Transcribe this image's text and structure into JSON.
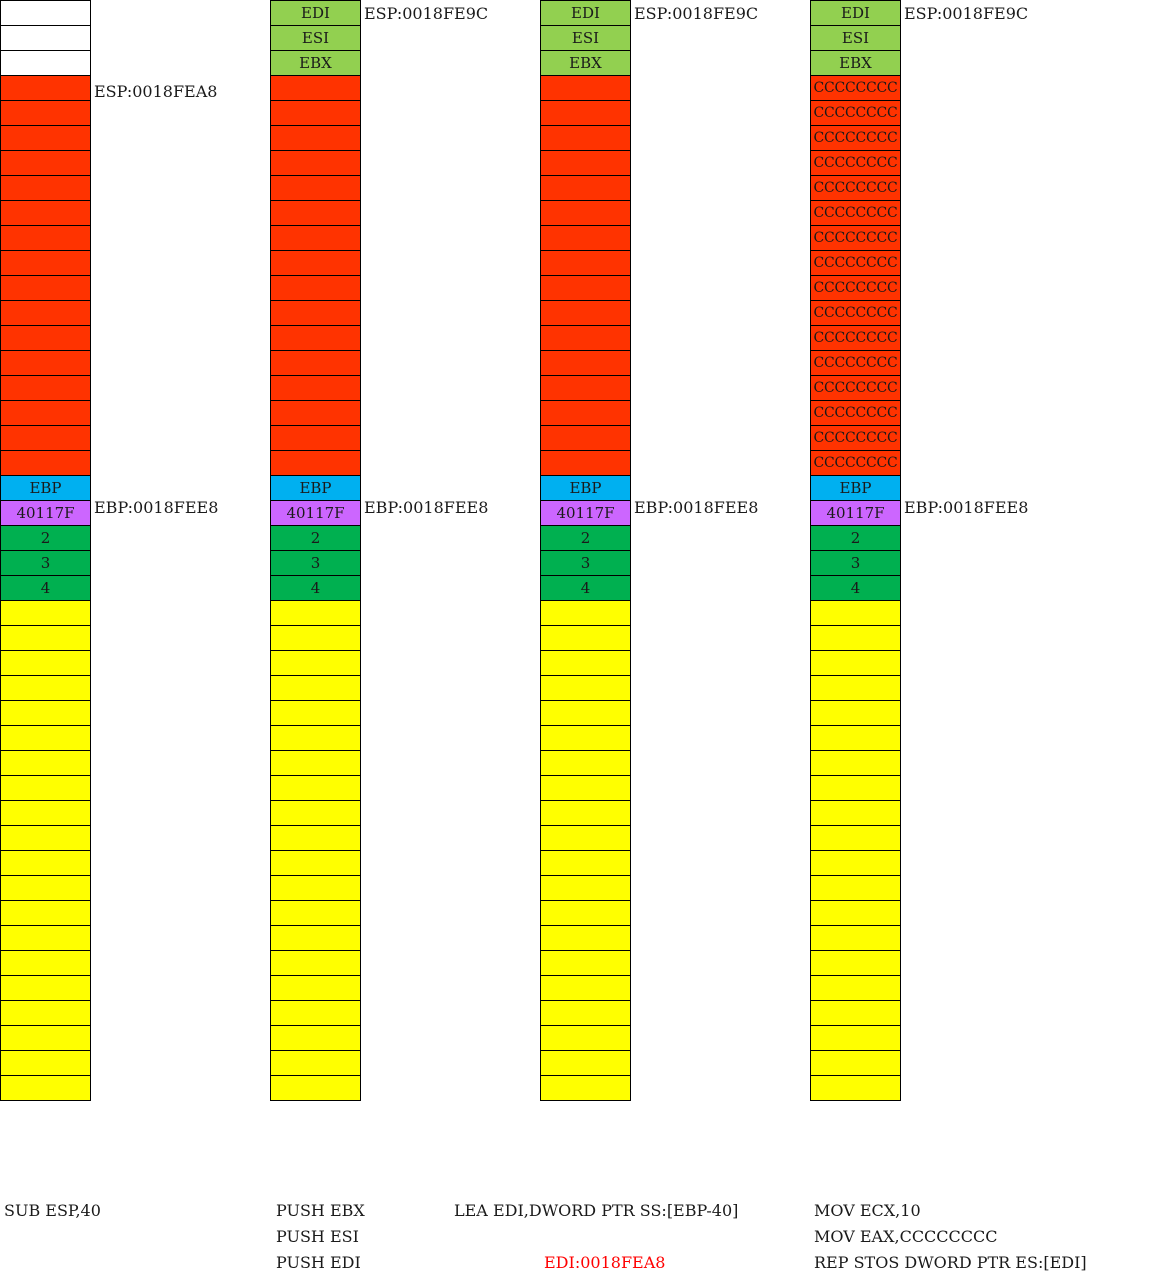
{
  "colors": {
    "empty": "#ffffff",
    "saved_reg": "#92d050",
    "local": "#ff3300",
    "ebp": "#00b0f0",
    "ret": "#cc66ff",
    "arg": "#00b050",
    "caller": "#ffff00",
    "highlight_text": "#ff0000"
  },
  "frames": [
    {
      "top": [
        {
          "label": "",
          "color": "empty"
        },
        {
          "label": "",
          "color": "empty"
        },
        {
          "label": "",
          "color": "empty"
        }
      ],
      "local_label": "",
      "local_count": 16,
      "esp_marker": "ESP:0018FEA8",
      "esp_row": 3,
      "ebp_marker": "EBP:0018FEE8",
      "caption_lines": [
        "SUB ESP,40"
      ]
    },
    {
      "top": [
        {
          "label": "EDI",
          "color": "saved_reg"
        },
        {
          "label": "ESI",
          "color": "saved_reg"
        },
        {
          "label": "EBX",
          "color": "saved_reg"
        }
      ],
      "local_label": "",
      "local_count": 16,
      "esp_marker": "ESP:0018FE9C",
      "esp_row": 0,
      "ebp_marker": "EBP:0018FEE8",
      "caption_lines": [
        "PUSH EBX",
        "PUSH ESI",
        "PUSH EDI"
      ]
    },
    {
      "top": [
        {
          "label": "EDI",
          "color": "saved_reg"
        },
        {
          "label": "ESI",
          "color": "saved_reg"
        },
        {
          "label": "EBX",
          "color": "saved_reg"
        }
      ],
      "local_label": "",
      "local_count": 16,
      "esp_marker": "ESP:0018FE9C",
      "esp_row": 0,
      "ebp_marker": "EBP:0018FEE8",
      "caption_lines": [
        "LEA EDI,DWORD PTR SS:[EBP-40]"
      ],
      "highlight": "EDI:0018FEA8"
    },
    {
      "top": [
        {
          "label": "EDI",
          "color": "saved_reg"
        },
        {
          "label": "ESI",
          "color": "saved_reg"
        },
        {
          "label": "EBX",
          "color": "saved_reg"
        }
      ],
      "local_label": "CCCCCCCC",
      "local_count": 16,
      "esp_marker": "ESP:0018FE9C",
      "esp_row": 0,
      "ebp_marker": "EBP:0018FEE8",
      "caption_lines": [
        "MOV ECX,10",
        "MOV EAX,CCCCCCCC",
        "REP STOS DWORD PTR ES:[EDI]"
      ]
    }
  ],
  "ebp_cell": "EBP",
  "return_address": "40117F",
  "args": [
    "2",
    "3",
    "4"
  ],
  "caller_count": 20
}
